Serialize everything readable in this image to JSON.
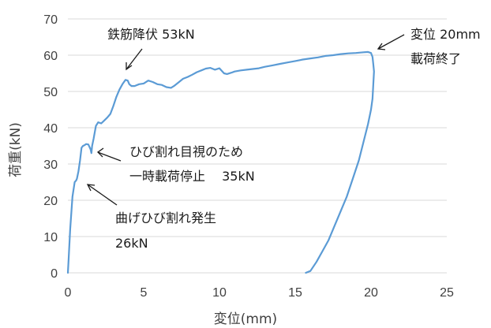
{
  "chart_data": {
    "type": "line",
    "xlabel": "変位(mm)",
    "ylabel": "荷重(kN)",
    "xlim": [
      0,
      25
    ],
    "ylim": [
      0,
      70
    ],
    "xticks": [
      0,
      5,
      10,
      15,
      20,
      25
    ],
    "yticks": [
      0,
      10,
      20,
      30,
      40,
      50,
      60,
      70
    ],
    "grid": "horizontal",
    "color": "#5b9bd5",
    "series": [
      {
        "x": [
          0,
          0.05,
          0.15,
          0.3,
          0.45,
          0.55,
          0.6,
          0.7,
          0.8,
          0.9,
          1.0,
          1.1,
          1.2,
          1.35,
          1.5,
          1.55,
          1.6,
          1.7,
          1.85,
          2.0,
          2.2,
          2.4,
          2.6,
          2.8,
          3.0,
          3.2,
          3.4,
          3.6,
          3.8,
          3.95,
          4.05,
          4.2,
          4.4,
          4.7,
          5.0,
          5.3,
          5.6,
          5.9,
          6.2,
          6.5,
          6.8,
          7.0,
          7.3,
          7.6,
          7.9,
          8.2,
          8.5,
          8.8,
          9.1,
          9.4,
          9.7,
          10.0,
          10.3,
          10.5,
          10.8,
          11.0,
          11.4,
          11.8,
          12.2,
          12.6,
          13.0,
          13.5,
          14.0,
          14.5,
          15.0,
          15.5,
          16.0,
          16.5,
          17.0,
          17.5,
          18.0,
          18.5,
          19.0,
          19.5,
          19.8,
          20.0,
          20.1,
          20.15,
          20.2,
          20.15,
          20.1,
          20.0,
          19.8,
          19.5,
          19.2,
          18.8,
          18.4,
          18.0,
          17.6,
          17.2,
          16.8,
          16.4,
          16.0,
          15.7
        ],
        "y": [
          0,
          4,
          12,
          21,
          25,
          25.5,
          26,
          28,
          31,
          34.5,
          35,
          35.2,
          35.5,
          35.4,
          34,
          33,
          35,
          37,
          40.5,
          41.5,
          41.2,
          42,
          42.8,
          43.8,
          46,
          48.5,
          50.5,
          52,
          53.2,
          53.0,
          52.0,
          51.5,
          51.5,
          52.0,
          52.2,
          53.0,
          52.6,
          52.0,
          51.8,
          51.2,
          51.0,
          51.5,
          52.5,
          53.5,
          54.0,
          54.6,
          55.3,
          55.8,
          56.3,
          56.5,
          56.0,
          56.4,
          55.0,
          54.8,
          55.2,
          55.5,
          55.8,
          56.0,
          56.2,
          56.4,
          56.8,
          57.2,
          57.6,
          58.0,
          58.4,
          58.8,
          59.1,
          59.4,
          59.8,
          60.0,
          60.3,
          60.5,
          60.6,
          60.8,
          60.9,
          60.6,
          59.5,
          57.5,
          55.5,
          52,
          48,
          45,
          41,
          36,
          31,
          26,
          21,
          17,
          13,
          9,
          6,
          3,
          0.5,
          0
        ]
      }
    ],
    "annotations": [
      {
        "text": "鉄筋降伏 53kN"
      },
      {
        "text": "変位 20mm"
      },
      {
        "text": "載荷終了"
      },
      {
        "text": "ひび割れ目視のため"
      },
      {
        "text": "一時載荷停止　 35kN"
      },
      {
        "text": "曲げひび割れ発生"
      },
      {
        "text": "26kN"
      }
    ]
  }
}
